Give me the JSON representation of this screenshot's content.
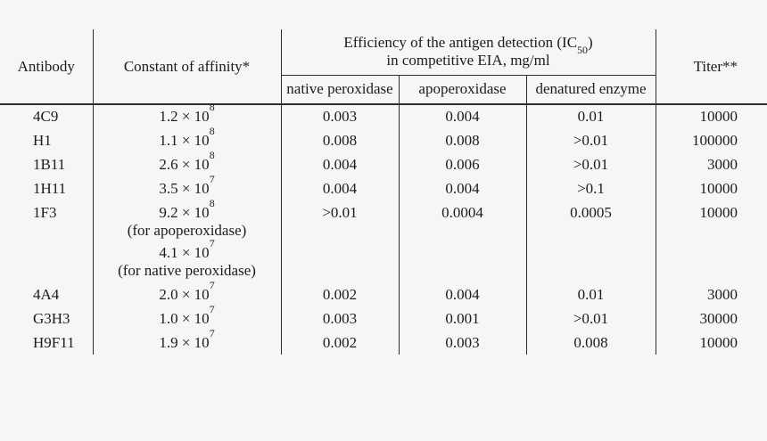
{
  "page": {
    "background_color": "#f5f6f5",
    "text_color": "#1c1c1c",
    "rule_color": "#2e2e2e"
  },
  "table": {
    "headers": {
      "antibody": "Antibody",
      "affinity": "Constant of affinity*",
      "efficiency_prefix": "Efficiency of the antigen detection (IC",
      "efficiency_sub": "50",
      "efficiency_close": ")",
      "efficiency_line2": "in competitive EIA, mg/ml",
      "native": "native peroxidase",
      "apo": "apoperoxidase",
      "denatured": "denatured enzyme",
      "titer": "Titer**"
    },
    "rows": [
      {
        "antibody": "4C9",
        "affinity": [
          {
            "base": "1.2 × 10",
            "exp": "8"
          }
        ],
        "native": "0.003",
        "apo": "0.004",
        "denatured": "0.01",
        "titer": "10000"
      },
      {
        "antibody": "H1",
        "affinity": [
          {
            "base": "1.1 × 10",
            "exp": "8"
          }
        ],
        "native": "0.008",
        "apo": "0.008",
        "denatured": ">0.01",
        "titer": "100000"
      },
      {
        "antibody": "1B11",
        "affinity": [
          {
            "base": "2.6 × 10",
            "exp": "8"
          }
        ],
        "native": "0.004",
        "apo": "0.006",
        "denatured": ">0.01",
        "titer": "3000"
      },
      {
        "antibody": "1H11",
        "affinity": [
          {
            "base": "3.5 × 10",
            "exp": "7"
          }
        ],
        "native": "0.004",
        "apo": "0.004",
        "denatured": ">0.1",
        "titer": "10000"
      },
      {
        "antibody": "1F3",
        "affinity": [
          {
            "base": "9.2 × 10",
            "exp": "8",
            "note": "(for apoperoxidase)"
          },
          {
            "base": "4.1 × 10",
            "exp": "7",
            "note": "(for native peroxidase)"
          }
        ],
        "native": ">0.01",
        "apo": "0.0004",
        "denatured": "0.0005",
        "titer": "10000"
      },
      {
        "antibody": "4A4",
        "affinity": [
          {
            "base": "2.0 × 10",
            "exp": "7"
          }
        ],
        "native": "0.002",
        "apo": "0.004",
        "denatured": "0.01",
        "titer": "3000"
      },
      {
        "antibody": "G3H3",
        "affinity": [
          {
            "base": "1.0 × 10",
            "exp": "7"
          }
        ],
        "native": "0.003",
        "apo": "0.001",
        "denatured": ">0.01",
        "titer": "30000"
      },
      {
        "antibody": "H9F11",
        "affinity": [
          {
            "base": "1.9 × 10",
            "exp": "7"
          }
        ],
        "native": "0.002",
        "apo": "0.003",
        "denatured": "0.008",
        "titer": "10000"
      }
    ]
  }
}
